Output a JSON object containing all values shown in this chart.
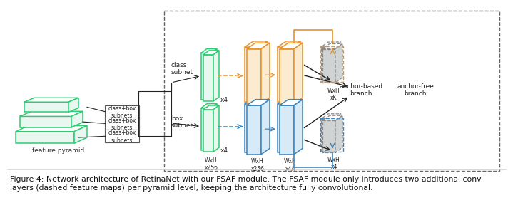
{
  "bg_color": "#ffffff",
  "fig_width": 7.0,
  "fig_height": 2.49,
  "green_face": "#e8f8f0",
  "green_edge": "#2ecc71",
  "orange_face": "#fdebd0",
  "orange_edge": "#e8922a",
  "blue_face": "#d6eaf8",
  "blue_edge": "#3a85c0",
  "gray_face": "#d0d3d4",
  "gray_edge": "#888888",
  "black": "#222222",
  "dashed_box_color": "#666666",
  "caption": "Figure 4: Network architecture of RetinaNet with our FSAF module. The FSAF module only introduces two additional conv\nlayers (dashed feature maps) per pyramid level, keeping the architecture fully convolutional.",
  "caption_fs": 7.8
}
